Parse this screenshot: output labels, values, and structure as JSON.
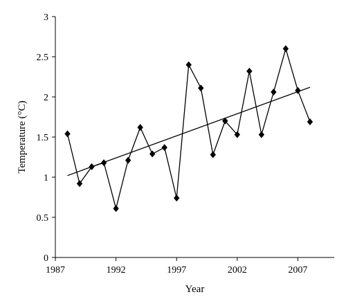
{
  "chart_data": {
    "type": "line",
    "title": "",
    "xlabel": "Year",
    "ylabel": "Temperature (°C)",
    "xlim": [
      1987,
      2010
    ],
    "ylim": [
      0,
      3
    ],
    "x_ticks": [
      1987,
      1992,
      1997,
      2002,
      2007
    ],
    "x_tick_labels": [
      "1987",
      "1992",
      "1997",
      "2002",
      "2007"
    ],
    "y_ticks": [
      0,
      0.5,
      1,
      1.5,
      2,
      2.5,
      3
    ],
    "y_tick_labels": [
      "0",
      "0.5",
      "1",
      "1.5",
      "2",
      "2.5",
      "3"
    ],
    "grid": false,
    "legend": "none",
    "marker": "diamond",
    "series": [
      {
        "x": [
          1988,
          1989,
          1990,
          1991,
          1992,
          1993,
          1994,
          1995,
          1996,
          1997,
          1998,
          1999,
          2000,
          2001,
          2002,
          2003,
          2004,
          2005,
          2006,
          2007,
          2008
        ],
        "y": [
          1.54,
          0.92,
          1.13,
          1.18,
          0.61,
          1.21,
          1.62,
          1.29,
          1.37,
          0.74,
          2.4,
          2.11,
          1.28,
          1.7,
          1.53,
          2.32,
          1.53,
          2.06,
          2.6,
          2.08,
          1.69
        ]
      }
    ],
    "trend": {
      "x": [
        1988,
        2008
      ],
      "y": [
        1.02,
        2.12
      ]
    },
    "colors": {
      "line": "#000000",
      "marker": "#000000",
      "axis": "#000000"
    }
  }
}
